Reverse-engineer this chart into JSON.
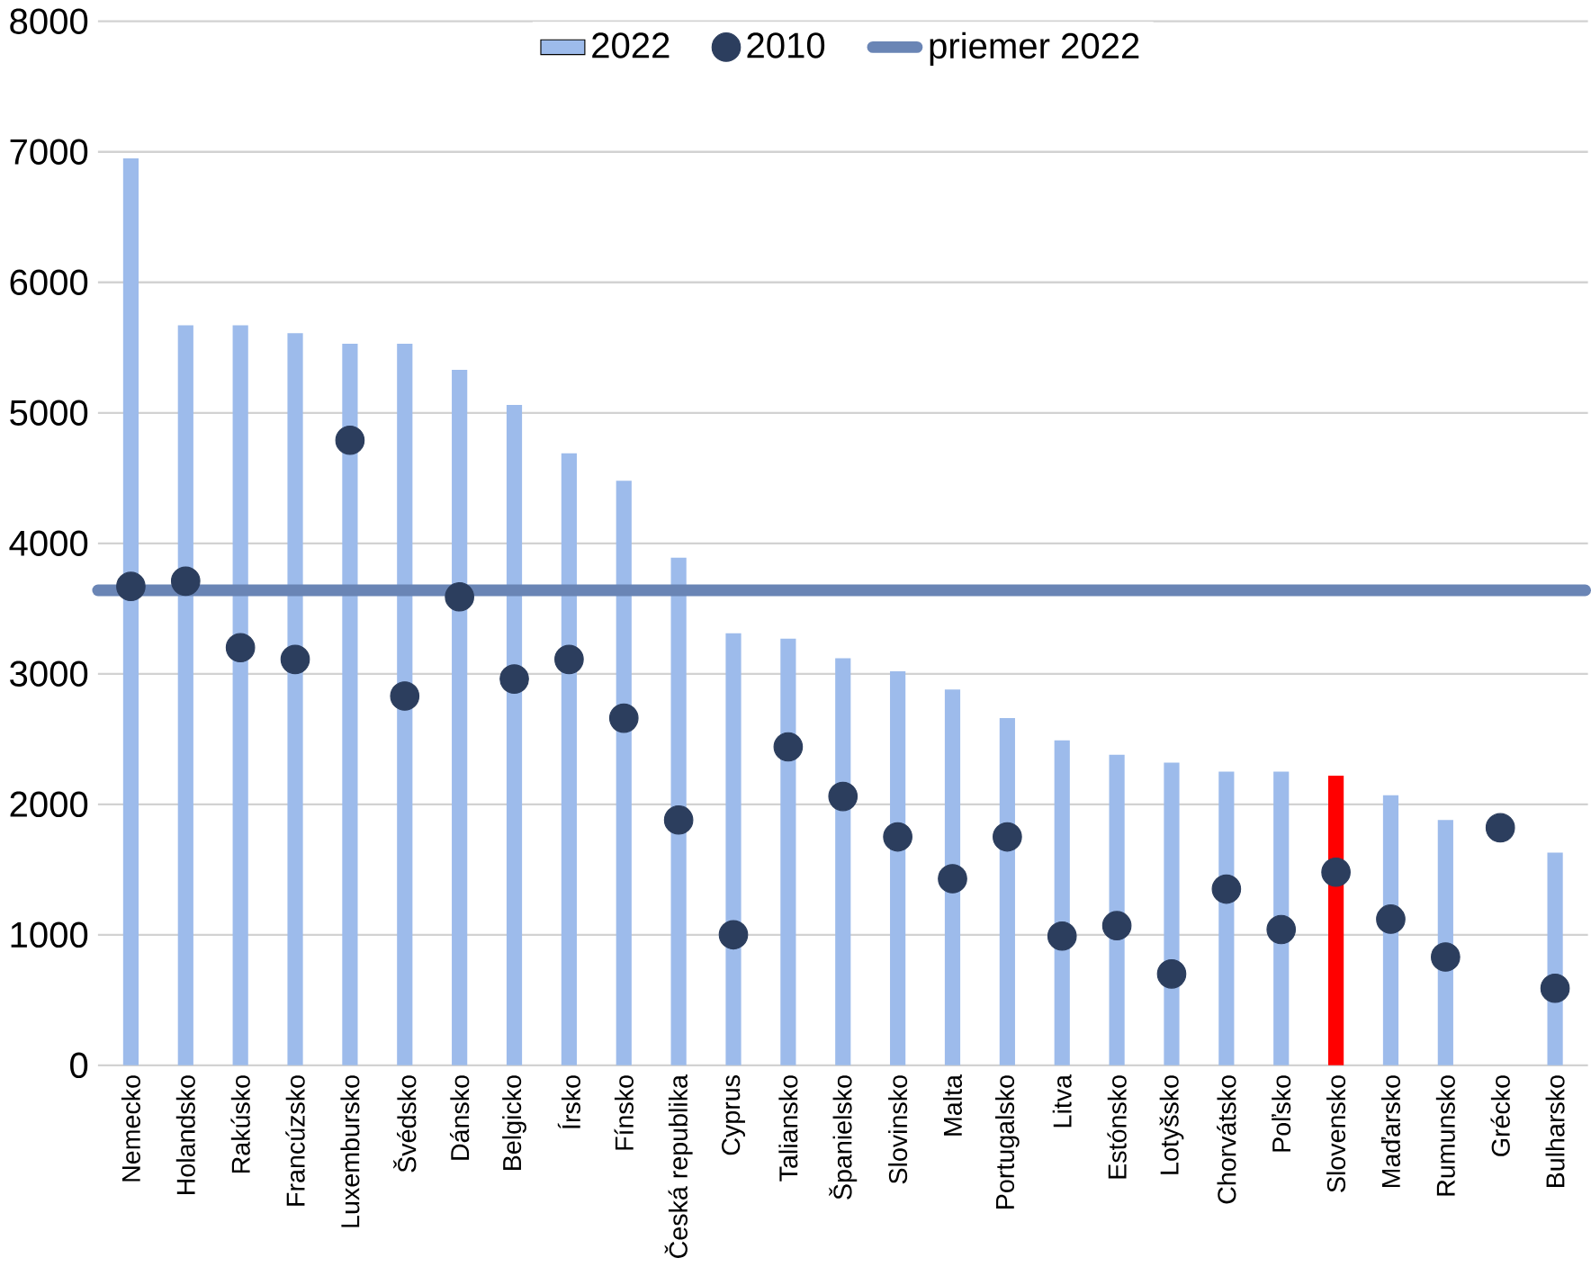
{
  "chart_data": {
    "type": "bar",
    "categories": [
      "Nemecko",
      "Holandsko",
      "Rakúsko",
      "Francúzsko",
      "Luxembursko",
      "Švédsko",
      "Dánsko",
      "Belgicko",
      "Írsko",
      "Fínsko",
      "Česká republika",
      "Cyprus",
      "Taliansko",
      "Španielsko",
      "Slovinsko",
      "Malta",
      "Portugalsko",
      "Litva",
      "Estónsko",
      "Lotyšsko",
      "Chorvátsko",
      "Poľsko",
      "Slovensko",
      "Maďarsko",
      "Rumunsko",
      "Grécko",
      "Bulharsko"
    ],
    "series": [
      {
        "name": "2022",
        "color": "#9dbbeb",
        "colors": [
          "#9dbbeb",
          "#9dbbeb",
          "#9dbbeb",
          "#9dbbeb",
          "#9dbbeb",
          "#9dbbeb",
          "#9dbbeb",
          "#9dbbeb",
          "#9dbbeb",
          "#9dbbeb",
          "#9dbbeb",
          "#9dbbeb",
          "#9dbbeb",
          "#9dbbeb",
          "#9dbbeb",
          "#9dbbeb",
          "#9dbbeb",
          "#9dbbeb",
          "#9dbbeb",
          "#9dbbeb",
          "#9dbbeb",
          "#9dbbeb",
          "#ff0000",
          "#9dbbeb",
          "#9dbbeb",
          "#9dbbeb",
          "#9dbbeb"
        ],
        "values": [
          6950,
          5670,
          5670,
          5610,
          5530,
          5530,
          5330,
          5060,
          4690,
          4480,
          3890,
          3310,
          3270,
          3120,
          3020,
          2880,
          2660,
          2490,
          2380,
          2320,
          2250,
          2250,
          2220,
          2070,
          1880,
          null,
          1630
        ]
      },
      {
        "name": "2010",
        "type": "scatter",
        "color": "#2c3e5e",
        "values": [
          3670,
          3710,
          3200,
          3110,
          4790,
          2830,
          3590,
          2960,
          3110,
          2660,
          1880,
          1000,
          2440,
          2060,
          1750,
          1430,
          1750,
          990,
          1070,
          700,
          1350,
          1040,
          1480,
          1120,
          830,
          1820,
          590
        ]
      }
    ],
    "ref_lines": [
      {
        "axis": "y",
        "value": 3640,
        "label": "priemer 2022",
        "color": "#6a85b5"
      }
    ],
    "ylim": [
      0,
      8000
    ],
    "yticks": [
      0,
      1000,
      2000,
      3000,
      4000,
      5000,
      6000,
      7000,
      8000
    ],
    "grid": "y",
    "legend": "top",
    "marker": "circle"
  }
}
